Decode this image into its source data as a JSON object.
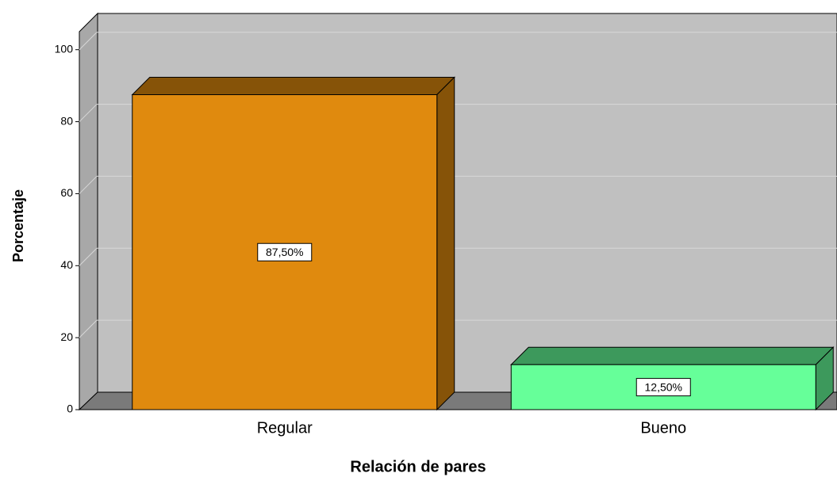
{
  "chart_data": {
    "type": "bar",
    "categories": [
      "Regular",
      "Bueno"
    ],
    "values": [
      87.5,
      12.5
    ],
    "value_labels": [
      "87,50%",
      "12,50%"
    ],
    "colors": [
      "#e08a0e",
      "#66ff99"
    ],
    "xlabel": "Relación de pares",
    "ylabel": "Porcentaje",
    "ylim": [
      0,
      105
    ],
    "yticks": [
      0,
      20,
      40,
      60,
      80,
      100
    ],
    "grid": true
  }
}
